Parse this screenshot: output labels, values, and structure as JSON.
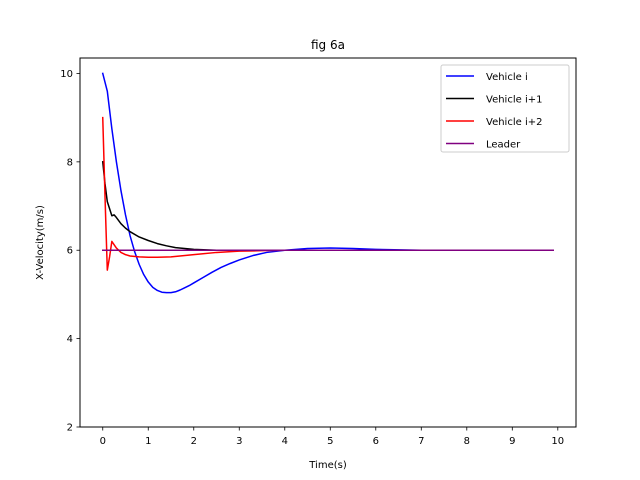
{
  "chart_data": {
    "type": "line",
    "title": "fig 6a",
    "xlabel": "Time(s)",
    "ylabel": "X-Velocity(m/s)",
    "xlim": [
      -0.5,
      10.4
    ],
    "ylim": [
      2,
      10.35
    ],
    "xticks": [
      0,
      1,
      2,
      3,
      4,
      5,
      6,
      7,
      8,
      9,
      10
    ],
    "yticks": [
      2,
      4,
      6,
      8,
      10
    ],
    "grid": false,
    "legend_position": "top-right",
    "series": [
      {
        "name": "Vehicle i",
        "color": "#0000ff",
        "x": [
          0,
          0.1,
          0.2,
          0.3,
          0.4,
          0.5,
          0.6,
          0.7,
          0.8,
          0.9,
          1.0,
          1.1,
          1.2,
          1.3,
          1.4,
          1.5,
          1.6,
          1.7,
          1.8,
          1.9,
          2.0,
          2.2,
          2.4,
          2.6,
          2.8,
          3.0,
          3.3,
          3.6,
          4.0,
          4.5,
          5.0,
          5.5,
          6.0,
          7.0,
          8.0,
          9.0,
          9.9
        ],
        "y": [
          10.0,
          9.6,
          8.75,
          8.0,
          7.35,
          6.8,
          6.33,
          5.97,
          5.68,
          5.45,
          5.28,
          5.16,
          5.09,
          5.05,
          5.04,
          5.04,
          5.06,
          5.1,
          5.15,
          5.2,
          5.26,
          5.38,
          5.5,
          5.61,
          5.7,
          5.78,
          5.88,
          5.95,
          6.0,
          6.04,
          6.05,
          6.04,
          6.02,
          6.0,
          6.0,
          6.0,
          6.0
        ]
      },
      {
        "name": "Vehicle i+1",
        "color": "#000000",
        "x": [
          0,
          0.05,
          0.1,
          0.2,
          0.25,
          0.3,
          0.4,
          0.5,
          0.6,
          0.8,
          1.0,
          1.2,
          1.4,
          1.6,
          1.8,
          2.0,
          2.5,
          3.0,
          4.0,
          5.0,
          6.0,
          8.0,
          9.9
        ],
        "y": [
          8.0,
          7.5,
          7.1,
          6.78,
          6.8,
          6.74,
          6.6,
          6.5,
          6.42,
          6.3,
          6.22,
          6.15,
          6.1,
          6.06,
          6.04,
          6.02,
          6.0,
          6.0,
          6.0,
          6.0,
          6.0,
          6.0,
          6.0
        ]
      },
      {
        "name": "Vehicle i+2",
        "color": "#ff0000",
        "x": [
          0,
          0.05,
          0.1,
          0.15,
          0.2,
          0.3,
          0.4,
          0.5,
          0.6,
          0.8,
          1.0,
          1.2,
          1.5,
          2.0,
          2.5,
          3.0,
          3.5,
          4.0,
          5.0,
          6.0,
          8.0,
          9.9
        ],
        "y": [
          9.0,
          7.2,
          5.55,
          5.85,
          6.2,
          6.05,
          5.95,
          5.9,
          5.87,
          5.85,
          5.84,
          5.84,
          5.85,
          5.9,
          5.95,
          5.98,
          5.99,
          6.0,
          6.0,
          6.0,
          6.0,
          6.0
        ]
      },
      {
        "name": "Leader",
        "color": "#800080",
        "x": [
          0,
          9.9
        ],
        "y": [
          6.0,
          6.0
        ]
      }
    ]
  }
}
